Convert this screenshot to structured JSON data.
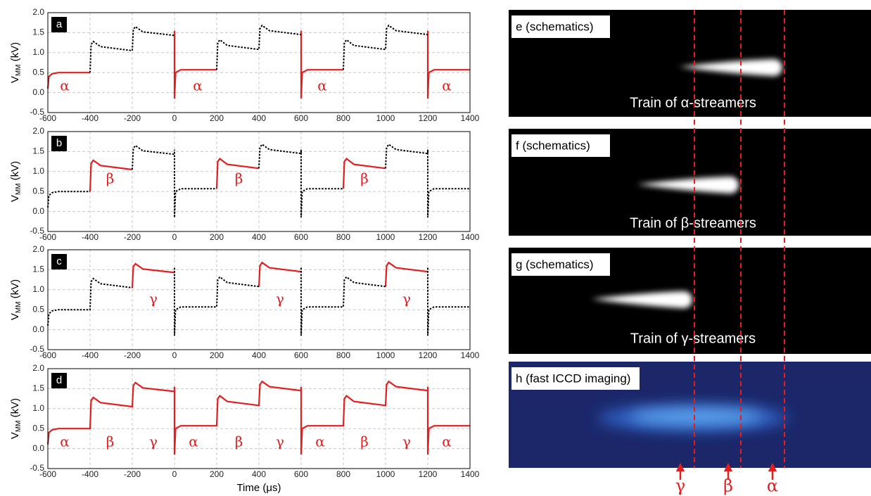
{
  "chart_data": [
    {
      "type": "line",
      "label": "a",
      "ylabel_main": "V",
      "ylabel_sub": "MM",
      "ylabel_unit": " (kV)",
      "xlim": [
        -600,
        1400
      ],
      "ylim": [
        -0.5,
        2.0
      ],
      "xticks": [
        -600,
        -400,
        -200,
        0,
        200,
        400,
        600,
        800,
        1000,
        1200,
        1400
      ],
      "yticks": [
        -0.5,
        {
          "value": 0,
          "label": "0.0"
        },
        0.5,
        {
          "value": 1,
          "label": "1.0"
        },
        1.5,
        {
          "value": 2,
          "label": "2.0"
        }
      ],
      "grid": true,
      "series": [
        {
          "color": "#e41e1e",
          "linestyle": "solid",
          "x": [
            -600,
            -595,
            -580,
            -550,
            -400,
            null,
            0,
            0,
            5,
            30,
            200,
            null,
            600,
            600,
            605,
            630,
            800,
            null,
            1200,
            1200,
            1205,
            1230,
            1400
          ],
          "values": [
            0.1,
            0.4,
            0.47,
            0.5,
            0.5,
            null,
            1.55,
            -0.15,
            0.5,
            0.57,
            0.57,
            null,
            1.55,
            -0.15,
            0.5,
            0.57,
            0.57,
            null,
            1.55,
            -0.15,
            0.5,
            0.57,
            0.57
          ]
        },
        {
          "color": "#000000",
          "linestyle": "dotted",
          "x": [
            -400,
            -395,
            -385,
            -350,
            -200,
            -200,
            -195,
            -185,
            -150,
            0,
            null,
            200,
            205,
            215,
            250,
            400,
            400,
            405,
            415,
            450,
            600,
            null,
            800,
            805,
            815,
            850,
            1000,
            1000,
            1005,
            1015,
            1050,
            1200
          ],
          "values": [
            0.5,
            1.2,
            1.28,
            1.15,
            1.05,
            1.05,
            1.58,
            1.65,
            1.52,
            1.43,
            null,
            0.57,
            1.25,
            1.32,
            1.18,
            1.08,
            1.08,
            1.6,
            1.68,
            1.55,
            1.45,
            null,
            0.57,
            1.25,
            1.32,
            1.18,
            1.08,
            1.08,
            1.6,
            1.68,
            1.55,
            1.45
          ]
        }
      ],
      "annotations": [
        {
          "text": "α",
          "x": -520,
          "y": 0.15,
          "color": "#e41e1e"
        },
        {
          "text": "α",
          "x": 110,
          "y": 0.15,
          "color": "#e41e1e"
        },
        {
          "text": "α",
          "x": 700,
          "y": 0.15,
          "color": "#e41e1e"
        },
        {
          "text": "α",
          "x": 1290,
          "y": 0.15,
          "color": "#e41e1e"
        }
      ]
    },
    {
      "type": "line",
      "label": "b",
      "ylabel_main": "V",
      "ylabel_sub": "MM",
      "ylabel_unit": " (kV)",
      "xlim": [
        -600,
        1400
      ],
      "ylim": [
        -0.5,
        2.0
      ],
      "xticks": [
        -600,
        -400,
        -200,
        0,
        200,
        400,
        600,
        800,
        1000,
        1200,
        1400
      ],
      "yticks": [
        -0.5,
        {
          "value": 0,
          "label": "0.0"
        },
        0.5,
        {
          "value": 1,
          "label": "1.0"
        },
        1.5,
        {
          "value": 2,
          "label": "2.0"
        }
      ],
      "grid": true,
      "series": [
        {
          "color": "#e41e1e",
          "linestyle": "solid",
          "x": [
            -400,
            -395,
            -385,
            -350,
            -200,
            null,
            200,
            205,
            215,
            250,
            400,
            null,
            800,
            805,
            815,
            850,
            1000
          ],
          "values": [
            0.5,
            1.2,
            1.28,
            1.15,
            1.05,
            null,
            0.57,
            1.25,
            1.32,
            1.18,
            1.08,
            null,
            0.57,
            1.25,
            1.32,
            1.18,
            1.08
          ]
        },
        {
          "color": "#000000",
          "linestyle": "dotted",
          "x": [
            -600,
            -595,
            -580,
            -550,
            -400,
            null,
            -200,
            -195,
            -185,
            -150,
            0,
            0,
            0,
            5,
            30,
            200,
            null,
            400,
            405,
            415,
            450,
            600,
            600,
            600,
            605,
            630,
            800,
            null,
            1000,
            1005,
            1015,
            1050,
            1200,
            1200,
            1200,
            1205,
            1230,
            1400
          ],
          "values": [
            0.1,
            0.4,
            0.47,
            0.5,
            0.5,
            null,
            1.05,
            1.58,
            1.65,
            1.52,
            1.43,
            1.55,
            -0.15,
            0.5,
            0.57,
            0.57,
            null,
            1.08,
            1.6,
            1.68,
            1.55,
            1.45,
            1.55,
            -0.15,
            0.5,
            0.57,
            0.57,
            null,
            1.08,
            1.6,
            1.68,
            1.55,
            1.45,
            1.55,
            -0.15,
            0.5,
            0.57,
            0.57
          ]
        }
      ],
      "annotations": [
        {
          "text": "β",
          "x": -305,
          "y": 0.8,
          "color": "#e41e1e"
        },
        {
          "text": "β",
          "x": 305,
          "y": 0.8,
          "color": "#e41e1e"
        },
        {
          "text": "β",
          "x": 900,
          "y": 0.8,
          "color": "#e41e1e"
        }
      ]
    },
    {
      "type": "line",
      "label": "c",
      "ylabel_main": "V",
      "ylabel_sub": "MM",
      "ylabel_unit": " (kV)",
      "xlim": [
        -600,
        1400
      ],
      "ylim": [
        -0.5,
        2.0
      ],
      "xticks": [
        -600,
        -400,
        -200,
        0,
        200,
        400,
        600,
        800,
        1000,
        1200,
        1400
      ],
      "yticks": [
        -0.5,
        {
          "value": 0,
          "label": "0.0"
        },
        0.5,
        {
          "value": 1,
          "label": "1.0"
        },
        1.5,
        {
          "value": 2,
          "label": "2.0"
        }
      ],
      "grid": true,
      "series": [
        {
          "color": "#e41e1e",
          "linestyle": "solid",
          "x": [
            -200,
            -195,
            -185,
            -150,
            0,
            null,
            400,
            405,
            415,
            450,
            600,
            null,
            1000,
            1005,
            1015,
            1050,
            1200
          ],
          "values": [
            1.05,
            1.58,
            1.65,
            1.52,
            1.43,
            null,
            1.08,
            1.6,
            1.68,
            1.55,
            1.45,
            null,
            1.08,
            1.6,
            1.68,
            1.55,
            1.45
          ]
        },
        {
          "color": "#000000",
          "linestyle": "dotted",
          "x": [
            -600,
            -595,
            -580,
            -550,
            -400,
            -400,
            -395,
            -385,
            -350,
            -200,
            null,
            0,
            0,
            5,
            30,
            200,
            200,
            205,
            215,
            250,
            400,
            null,
            600,
            600,
            605,
            630,
            800,
            800,
            805,
            815,
            850,
            1000,
            null,
            1200,
            1200,
            1205,
            1230,
            1400
          ],
          "values": [
            0.1,
            0.4,
            0.47,
            0.5,
            0.5,
            0.5,
            1.2,
            1.28,
            1.15,
            1.05,
            null,
            1.55,
            -0.15,
            0.5,
            0.57,
            0.57,
            0.57,
            1.25,
            1.32,
            1.18,
            1.08,
            null,
            1.55,
            -0.15,
            0.5,
            0.57,
            0.57,
            0.57,
            1.25,
            1.32,
            1.18,
            1.08,
            null,
            1.55,
            -0.15,
            0.5,
            0.57,
            0.57
          ]
        }
      ],
      "annotations": [
        {
          "text": "γ",
          "x": -100,
          "y": 0.75,
          "color": "#e41e1e"
        },
        {
          "text": "γ",
          "x": 500,
          "y": 0.75,
          "color": "#e41e1e"
        },
        {
          "text": "γ",
          "x": 1100,
          "y": 0.75,
          "color": "#e41e1e"
        }
      ]
    },
    {
      "type": "line",
      "label": "d",
      "ylabel_main": "V",
      "ylabel_sub": "MM",
      "ylabel_unit": " (kV)",
      "xlabel": "Time (μs)",
      "xlim": [
        -600,
        1400
      ],
      "ylim": [
        -0.5,
        2.0
      ],
      "xticks": [
        -600,
        -400,
        -200,
        0,
        200,
        400,
        600,
        800,
        1000,
        1200,
        1400
      ],
      "yticks": [
        -0.5,
        {
          "value": 0,
          "label": "0.0"
        },
        0.5,
        {
          "value": 1,
          "label": "1.0"
        },
        1.5,
        {
          "value": 2,
          "label": "2.0"
        }
      ],
      "grid": true,
      "series": [
        {
          "color": "#e41e1e",
          "linestyle": "solid",
          "x": [
            -600,
            -595,
            -580,
            -550,
            -400,
            -395,
            -385,
            -350,
            -200,
            -195,
            -185,
            -150,
            0,
            0,
            0,
            5,
            30,
            200,
            205,
            215,
            250,
            400,
            405,
            415,
            450,
            600,
            600,
            600,
            605,
            630,
            800,
            805,
            815,
            850,
            1000,
            1005,
            1015,
            1050,
            1200,
            1200,
            1200,
            1205,
            1230,
            1400
          ],
          "values": [
            0.1,
            0.4,
            0.47,
            0.5,
            0.5,
            1.2,
            1.28,
            1.15,
            1.05,
            1.58,
            1.65,
            1.52,
            1.43,
            1.55,
            -0.15,
            0.5,
            0.57,
            0.57,
            1.25,
            1.32,
            1.18,
            1.08,
            1.6,
            1.68,
            1.55,
            1.45,
            1.55,
            -0.15,
            0.5,
            0.57,
            0.57,
            1.25,
            1.32,
            1.18,
            1.08,
            1.6,
            1.68,
            1.55,
            1.45,
            1.55,
            -0.15,
            0.5,
            0.57,
            0.57
          ]
        }
      ],
      "annotations": [
        {
          "text": "α",
          "x": -520,
          "y": 0.15,
          "color": "#e41e1e"
        },
        {
          "text": "β",
          "x": -305,
          "y": 0.15,
          "color": "#e41e1e"
        },
        {
          "text": "γ",
          "x": -100,
          "y": 0.15,
          "color": "#e41e1e"
        },
        {
          "text": "α",
          "x": 90,
          "y": 0.15,
          "color": "#e41e1e"
        },
        {
          "text": "β",
          "x": 305,
          "y": 0.15,
          "color": "#e41e1e"
        },
        {
          "text": "γ",
          "x": 500,
          "y": 0.15,
          "color": "#e41e1e"
        },
        {
          "text": "α",
          "x": 690,
          "y": 0.15,
          "color": "#e41e1e"
        },
        {
          "text": "β",
          "x": 900,
          "y": 0.15,
          "color": "#e41e1e"
        },
        {
          "text": "γ",
          "x": 1100,
          "y": 0.15,
          "color": "#e41e1e"
        },
        {
          "text": "α",
          "x": 1290,
          "y": 0.15,
          "color": "#e41e1e"
        }
      ]
    }
  ],
  "images": [
    {
      "label": "e (schematics)",
      "caption": "Train of α-streamers"
    },
    {
      "label": "f (schematics)",
      "caption": "Train of β-streamers"
    },
    {
      "label": "g (schematics)",
      "caption": "Train of γ-streamers"
    },
    {
      "label": "h (fast ICCD imaging)"
    }
  ],
  "arrows": [
    "γ",
    "β",
    "α"
  ]
}
